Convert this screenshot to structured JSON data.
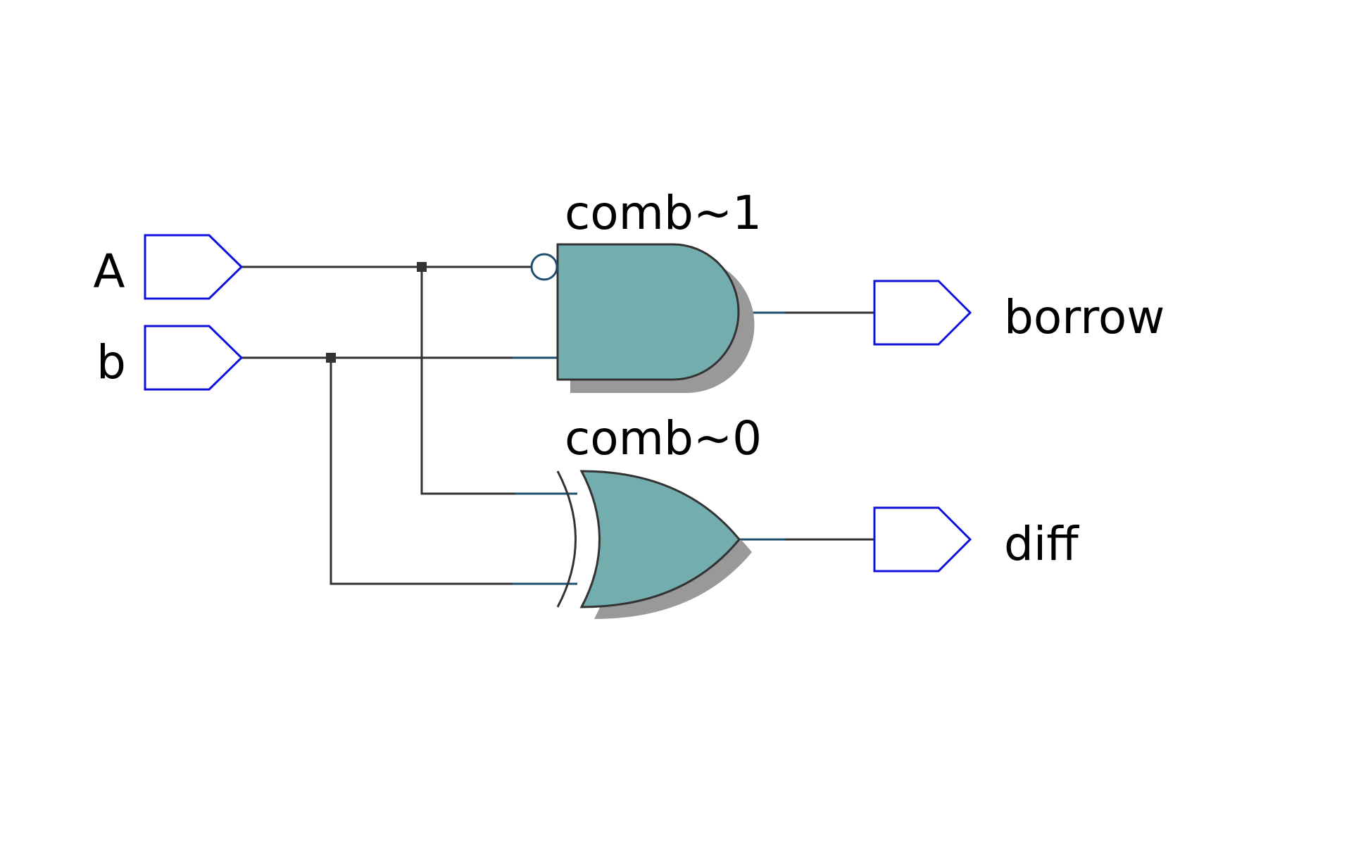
{
  "inputs": [
    {
      "name": "A"
    },
    {
      "name": "b"
    }
  ],
  "outputs": [
    {
      "name": "borrow"
    },
    {
      "name": "diff"
    }
  ],
  "gates": [
    {
      "name": "comb~1",
      "type": "AND",
      "inverted_input": "A",
      "inputs": [
        "A",
        "b"
      ],
      "output": "borrow"
    },
    {
      "name": "comb~0",
      "type": "XOR",
      "inputs": [
        "A",
        "b"
      ],
      "output": "diff"
    }
  ],
  "colors": {
    "port_outline": "#1010dd",
    "gate_fill": "#74adad",
    "gate_stroke": "#333333",
    "shadow": "#999999",
    "wire": "#333333",
    "wire_stub": "#1f4f6f",
    "junction": "#333333"
  }
}
